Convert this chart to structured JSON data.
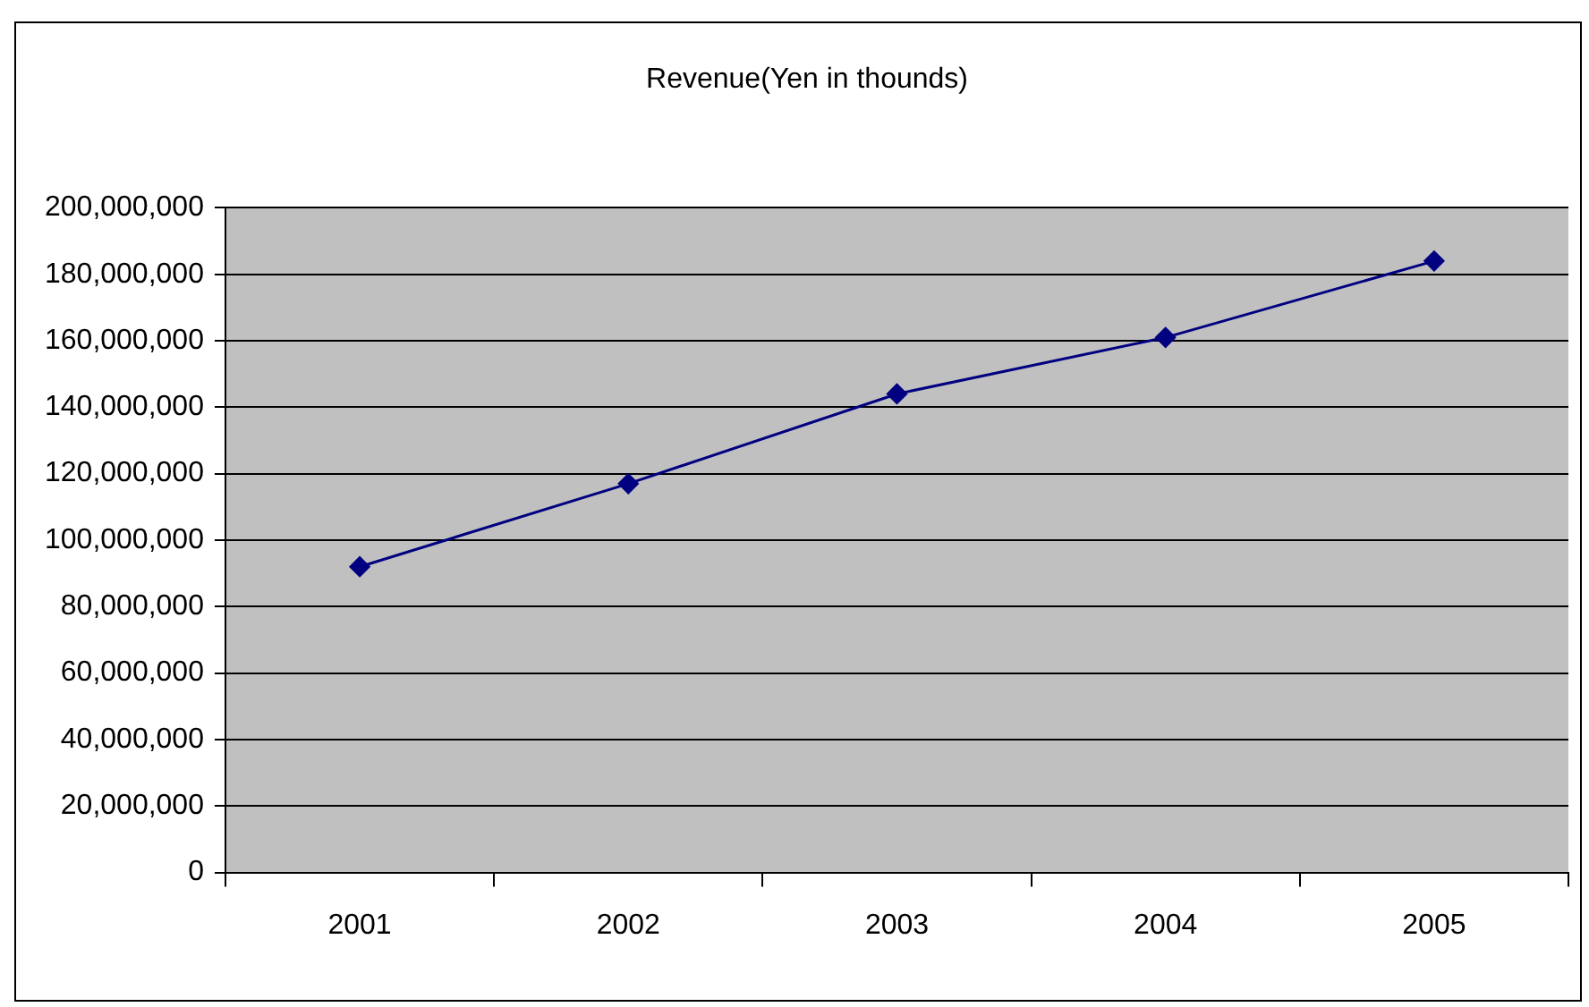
{
  "chart_data": {
    "type": "line",
    "title": "Revenue(Yen in thounds)",
    "categories": [
      "2001",
      "2002",
      "2003",
      "2004",
      "2005"
    ],
    "series": [
      {
        "color": "#000080",
        "values": [
          92000000,
          117000000,
          144000000,
          161000000,
          184000000
        ]
      }
    ],
    "ylim": [
      0,
      200000000
    ],
    "yticks": [
      {
        "value": 0,
        "label": "0"
      },
      {
        "value": 20000000,
        "label": "20,000,000"
      },
      {
        "value": 40000000,
        "label": "40,000,000"
      },
      {
        "value": 60000000,
        "label": "60,000,000"
      },
      {
        "value": 80000000,
        "label": "80,000,000"
      },
      {
        "value": 100000000,
        "label": "100,000,000"
      },
      {
        "value": 120000000,
        "label": "120,000,000"
      },
      {
        "value": 140000000,
        "label": "140,000,000"
      },
      {
        "value": 160000000,
        "label": "160,000,000"
      },
      {
        "value": 180000000,
        "label": "180,000,000"
      },
      {
        "value": 200000000,
        "label": "200,000,000"
      }
    ],
    "grid": "y",
    "legend": false,
    "marker": "diamond",
    "line_style": "solid"
  }
}
